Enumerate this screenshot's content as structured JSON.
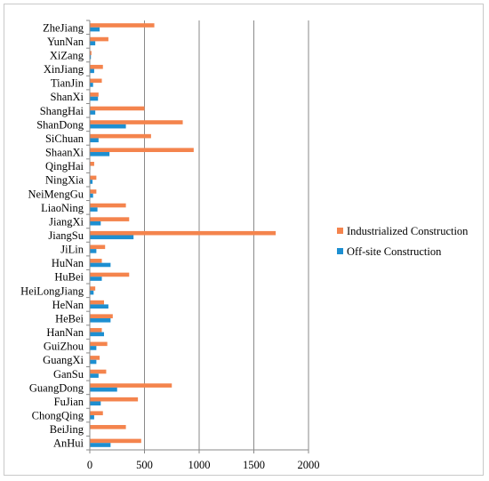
{
  "chart_data": {
    "type": "bar",
    "orientation": "horizontal",
    "title": "",
    "xlabel": "",
    "ylabel": "",
    "xlim": [
      0,
      2000
    ],
    "x_ticks": [
      "0",
      "500",
      "1000",
      "1500",
      "2000"
    ],
    "grid": "vertical",
    "legend_position": "right",
    "categories": [
      "ZheJiang",
      "YunNan",
      "XiZang",
      "XinJiang",
      "TianJin",
      "ShanXi",
      "ShangHai",
      "ShanDong",
      "SiChuan",
      "ShaanXi",
      "QingHai",
      "NingXia",
      "NeiMengGu",
      "LiaoNing",
      "JiangXi",
      "JiangSu",
      "JiLin",
      "HuNan",
      "HuBei",
      "HeiLongJiang",
      "HeNan",
      "HeBei",
      "HanNan",
      "GuiZhou",
      "GuangXi",
      "GanSu",
      "GuangDong",
      "FuJian",
      "ChongQing",
      "BeiJing",
      "AnHui"
    ],
    "series": [
      {
        "name": "Industrialized Construction",
        "color": "#f4844d",
        "values": [
          590,
          170,
          15,
          120,
          110,
          80,
          500,
          850,
          560,
          950,
          40,
          60,
          60,
          330,
          360,
          1700,
          140,
          110,
          360,
          50,
          130,
          210,
          110,
          160,
          90,
          150,
          750,
          440,
          120,
          330,
          470
        ]
      },
      {
        "name": "Off-site Construction",
        "color": "#1d8fd1",
        "values": [
          90,
          50,
          10,
          40,
          30,
          75,
          50,
          330,
          80,
          180,
          5,
          25,
          30,
          70,
          100,
          400,
          60,
          190,
          110,
          35,
          170,
          190,
          130,
          60,
          60,
          80,
          250,
          100,
          40,
          0,
          190
        ]
      }
    ]
  }
}
